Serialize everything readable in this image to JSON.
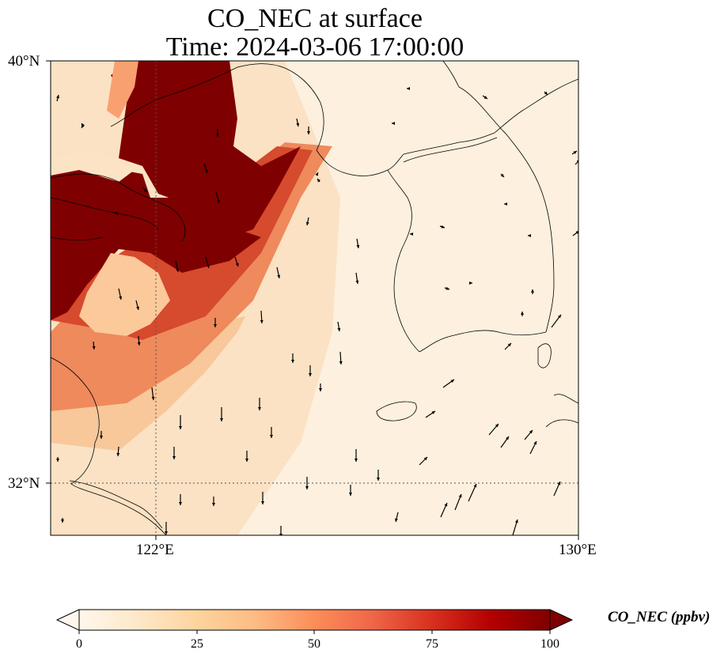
{
  "title_line1": "CO_NEC at surface",
  "title_line2": "Time: 2024-03-06 17:00:00",
  "axes": {
    "lat_ticks": [
      "40°N",
      "32°N"
    ],
    "lon_ticks": [
      "122°E",
      "130°E"
    ],
    "lat_range": [
      31,
      40
    ],
    "lon_range": [
      120,
      130
    ],
    "gridlines": "dotted",
    "gridline_lon": 122,
    "gridline_lat": 32
  },
  "colorbar": {
    "label": "CO_NEC (ppbv)",
    "ticks": [
      "0",
      "25",
      "50",
      "75",
      "100"
    ],
    "range": [
      0,
      100
    ],
    "extend": "both",
    "colormap": "OrRd",
    "colors": [
      "#fff7ec",
      "#fee8c8",
      "#fdd49e",
      "#fdbb84",
      "#fc8d59",
      "#ef6548",
      "#d7301f",
      "#b30000",
      "#7f0000"
    ]
  },
  "features": {
    "coastlines": true,
    "wind_vectors": true,
    "wind_direction": "predominantly southward"
  }
}
